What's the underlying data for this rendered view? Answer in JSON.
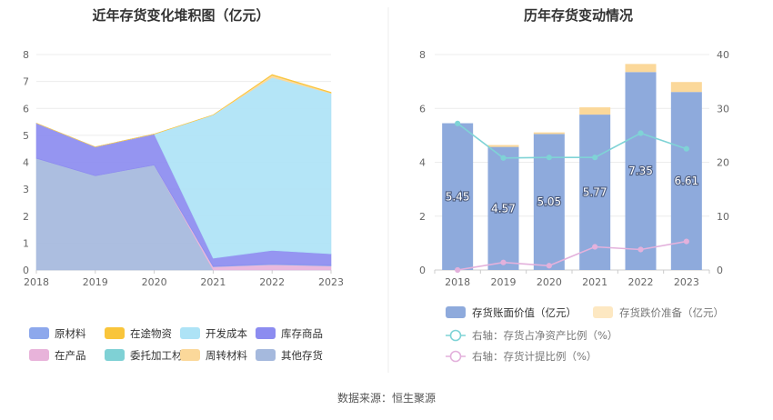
{
  "page": {
    "source": "数据来源：恒生聚源"
  },
  "colors": {
    "raw_material": "#8da8ec",
    "in_transit": "#f9c53b",
    "development_cost": "#aee3f6",
    "inventory_goods": "#8c8cf0",
    "in_process": "#e8b3da",
    "entrusted_processing": "#7fd1d5",
    "turnover_material": "#fbd89a",
    "other_inventory": "#a5b9dd",
    "book_value_bar": "#8eaadc",
    "impairment_bar": "#fbd89a",
    "net_asset_ratio_line": "#7fd3d6",
    "provision_ratio_line": "#e3b1dc"
  },
  "chart_data": [
    {
      "type": "area",
      "title": "近年存货变化堆积图（亿元）",
      "stacked": true,
      "categories": [
        "2018",
        "2019",
        "2020",
        "2021",
        "2022",
        "2023"
      ],
      "ylim": [
        0,
        8
      ],
      "yticks": [
        0,
        1,
        2,
        3,
        4,
        5,
        6,
        7,
        8
      ],
      "grid": true,
      "legend_position": "bottom",
      "series": [
        {
          "name": "其他存货",
          "key": "other_inventory",
          "values": [
            4.15,
            3.5,
            3.9,
            0,
            0,
            0
          ]
        },
        {
          "name": "在产品",
          "key": "in_process",
          "values": [
            0,
            0,
            0,
            0.12,
            0.2,
            0.15
          ]
        },
        {
          "name": "原材料",
          "key": "raw_material",
          "values": [
            0,
            0,
            0,
            0.02,
            0.03,
            0.03
          ]
        },
        {
          "name": "库存商品",
          "key": "inventory_goods",
          "values": [
            1.3,
            1.07,
            1.15,
            0.3,
            0.5,
            0.42
          ]
        },
        {
          "name": "委托加工材料",
          "key": "entrusted_processing",
          "values": [
            0,
            0,
            0,
            0,
            0,
            0
          ]
        },
        {
          "name": "开发成本",
          "key": "development_cost",
          "values": [
            0,
            0,
            0,
            5.32,
            6.42,
            5.96
          ]
        },
        {
          "name": "周转材料",
          "key": "turnover_material",
          "values": [
            0,
            0,
            0,
            0,
            0.08,
            0.02
          ]
        },
        {
          "name": "在途物资",
          "key": "in_transit",
          "values": [
            0,
            0,
            0,
            0,
            0.03,
            0.02
          ]
        }
      ],
      "legend": [
        {
          "name": "原材料",
          "key": "raw_material"
        },
        {
          "name": "在途物资",
          "key": "in_transit"
        },
        {
          "name": "开发成本",
          "key": "development_cost"
        },
        {
          "name": "库存商品",
          "key": "inventory_goods"
        },
        {
          "name": "在产品",
          "key": "in_process"
        },
        {
          "name": "委托加工材料",
          "key": "entrusted_processing"
        },
        {
          "name": "周转材料",
          "key": "turnover_material"
        },
        {
          "name": "其他存货",
          "key": "other_inventory"
        }
      ]
    },
    {
      "type": "bar",
      "title": "历年存货变动情况",
      "categories": [
        "2018",
        "2019",
        "2020",
        "2021",
        "2022",
        "2023"
      ],
      "ylim": [
        0,
        8
      ],
      "yticks": [
        0,
        2,
        4,
        6,
        8
      ],
      "y2lim": [
        0,
        40
      ],
      "y2ticks": [
        0,
        10,
        20,
        30,
        40
      ],
      "grid": true,
      "legend_position": "bottom",
      "series": [
        {
          "name": "存货账面价值（亿元）",
          "kind": "bar",
          "stacked": true,
          "axis": "left",
          "key": "book_value_bar",
          "values": [
            5.45,
            4.57,
            5.05,
            5.77,
            7.35,
            6.61
          ],
          "labels": [
            "5.45",
            "4.57",
            "5.05",
            "5.77",
            "7.35",
            "6.61"
          ]
        },
        {
          "name": "存货跌价准备（亿元）",
          "kind": "bar",
          "stacked": true,
          "axis": "left",
          "key": "impairment_bar",
          "values": [
            0,
            0.07,
            0.06,
            0.27,
            0.3,
            0.37
          ]
        },
        {
          "name": "右轴：存货占净资产比例（%）",
          "kind": "line",
          "axis": "right",
          "key": "net_asset_ratio_line",
          "values": [
            27.2,
            20.8,
            20.9,
            20.9,
            25.4,
            22.5
          ]
        },
        {
          "name": "右轴：存货计提比例（%）",
          "kind": "line",
          "axis": "right",
          "key": "provision_ratio_line",
          "values": [
            0,
            1.4,
            0.8,
            4.3,
            3.8,
            5.3
          ]
        }
      ]
    }
  ]
}
